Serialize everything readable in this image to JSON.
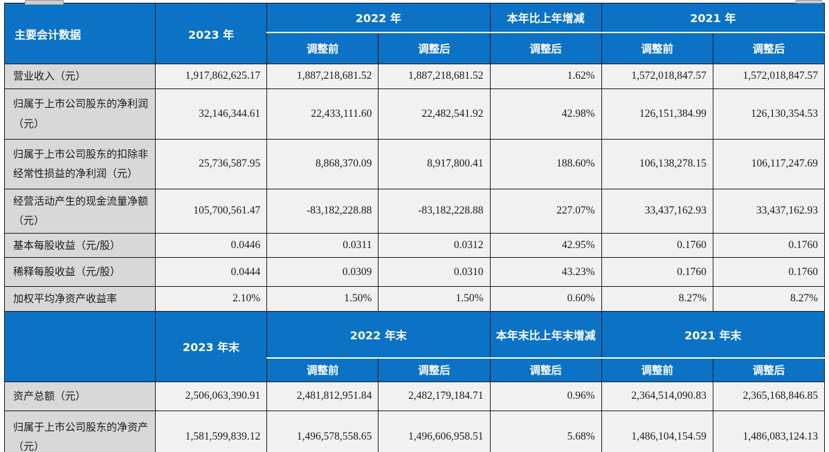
{
  "colors": {
    "header_bg": "#0b72c5",
    "header_text": "#ffffff",
    "label_bg": "#d8d8d8",
    "value_bg": "#f1f1f1",
    "border_dark": "#1a1a1a",
    "border_white": "#ffffff",
    "body_text": "#1a1a1a"
  },
  "adjust": {
    "before": "调整前",
    "after": "调整后"
  },
  "section1": {
    "corner": "主要会计数据",
    "year_current": "2023 年",
    "year_prev": "2022 年",
    "change": "本年比上年增减",
    "year_prev2": "2021 年",
    "rows": [
      {
        "label": "营业收入（元）",
        "v": [
          "1,917,862,625.17",
          "1,887,218,681.52",
          "1,887,218,681.52",
          "1.62%",
          "1,572,018,847.57",
          "1,572,018,847.57"
        ]
      },
      {
        "label": "归属于上市公司股东的净利润（元）",
        "v": [
          "32,146,344.61",
          "22,433,111.60",
          "22,482,541.92",
          "42.98%",
          "126,151,384.99",
          "126,130,354.53"
        ]
      },
      {
        "label": "归属于上市公司股东的扣除非经常性损益的净利润（元）",
        "v": [
          "25,736,587.95",
          "8,868,370.09",
          "8,917,800.41",
          "188.60%",
          "106,138,278.15",
          "106,117,247.69"
        ]
      },
      {
        "label": "经营活动产生的现金流量净额（元）",
        "v": [
          "105,700,561.47",
          "-83,182,228.88",
          "-83,182,228.88",
          "227.07%",
          "33,437,162.93",
          "33,437,162.93"
        ]
      },
      {
        "label": "基本每股收益（元/股）",
        "v": [
          "0.0446",
          "0.0311",
          "0.0312",
          "42.95%",
          "0.1760",
          "0.1760"
        ]
      },
      {
        "label": "稀释每股收益（元/股）",
        "v": [
          "0.0444",
          "0.0309",
          "0.0310",
          "43.23%",
          "0.1760",
          "0.1760"
        ]
      },
      {
        "label": "加权平均净资产收益率",
        "v": [
          "2.10%",
          "1.50%",
          "1.50%",
          "0.60%",
          "8.27%",
          "8.27%"
        ]
      }
    ]
  },
  "section2": {
    "corner": "",
    "year_current": "2023 年末",
    "year_prev": "2022 年末",
    "change": "本年末比上年末增减",
    "year_prev2": "2021 年末",
    "rows": [
      {
        "label": "资产总额（元）",
        "v": [
          "2,506,063,390.91",
          "2,481,812,951.84",
          "2,482,179,184.71",
          "0.96%",
          "2,364,514,090.83",
          "2,365,168,846.85"
        ]
      },
      {
        "label": "归属于上市公司股东的净资产（元）",
        "v": [
          "1,581,599,839.12",
          "1,496,578,558.65",
          "1,496,606,958.51",
          "5.68%",
          "1,486,104,154.59",
          "1,486,083,124.13"
        ]
      }
    ]
  }
}
